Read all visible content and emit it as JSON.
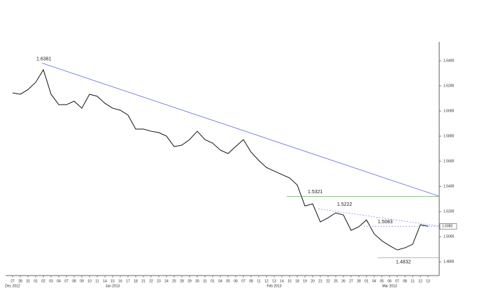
{
  "chart_data": {
    "type": "line",
    "categories": [
      "27",
      "28",
      "31",
      "01",
      "02",
      "03",
      "04",
      "07",
      "08",
      "09",
      "10",
      "11",
      "14",
      "15",
      "16",
      "17",
      "18",
      "21",
      "22",
      "23",
      "24",
      "25",
      "28",
      "29",
      "30",
      "31",
      "01",
      "04",
      "05",
      "06",
      "07",
      "08",
      "11",
      "12",
      "13",
      "14",
      "15",
      "18",
      "19",
      "20",
      "21",
      "22",
      "25",
      "26",
      "27",
      "28",
      "01",
      "04",
      "05",
      "06",
      "07",
      "08",
      "11",
      "12",
      "13"
    ],
    "month_labels": [
      "Dec 2012",
      "Jan 2013",
      "Feb 2013",
      "Mar 2013"
    ],
    "series": [
      {
        "color": "#111111",
        "values": [
          1.6144,
          1.6133,
          1.617,
          1.6228,
          1.6328,
          1.6133,
          1.605,
          1.605,
          1.6078,
          1.6022,
          1.6133,
          1.6117,
          1.6061,
          1.6022,
          1.6006,
          1.5967,
          1.5856,
          1.5856,
          1.5839,
          1.5828,
          1.58,
          1.5717,
          1.5728,
          1.5772,
          1.5839,
          1.5772,
          1.5744,
          1.5689,
          1.5661,
          1.5717,
          1.5772,
          1.5672,
          1.5606,
          1.555,
          1.5522,
          1.5494,
          1.5467,
          1.5411,
          1.5244,
          1.5261,
          1.5117,
          1.515,
          1.5189,
          1.5172,
          1.505,
          1.5078,
          1.5133,
          1.5022,
          1.4967,
          1.4928,
          1.4894,
          1.4911,
          1.4939,
          1.5094,
          1.5083
        ]
      }
    ],
    "annotations": [
      1.6381,
      1.5321,
      1.5222,
      1.5083,
      1.4832
    ],
    "last_price": 1.5082,
    "ylim": [
      1.469,
      1.655
    ],
    "yticks": [
      {
        "value": 1.48,
        "label": "1.4800"
      },
      {
        "value": 1.5,
        "label": "1.5000"
      },
      {
        "value": 1.52,
        "label": "1.5200"
      },
      {
        "value": 1.54,
        "label": "1.5400"
      },
      {
        "value": 1.56,
        "label": "1.5600"
      },
      {
        "value": 1.58,
        "label": "1.5800"
      },
      {
        "value": 1.6,
        "label": "1.6000"
      },
      {
        "value": 1.62,
        "label": "1.6200"
      },
      {
        "value": 1.64,
        "label": "1.6400"
      }
    ]
  }
}
